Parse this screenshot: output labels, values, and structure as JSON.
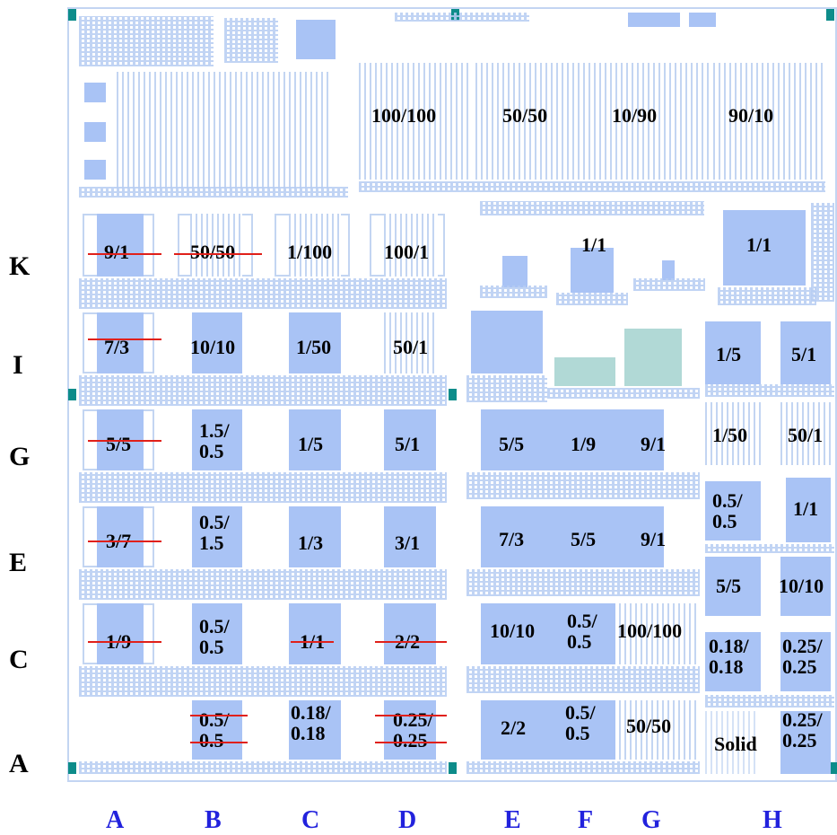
{
  "row_labels": [
    "K",
    "I",
    "G",
    "E",
    "C",
    "A"
  ],
  "column_labels": [
    "A",
    "B",
    "C",
    "D",
    "E",
    "F",
    "G",
    "H"
  ],
  "top_row": [
    "100/100",
    "50/50",
    "10/90",
    "90/10"
  ],
  "row_K": [
    "9/1",
    "50/50",
    "1/100",
    "100/1",
    "1/1",
    "1/1"
  ],
  "row_I": [
    "7/3",
    "10/10",
    "1/50",
    "50/1",
    "1/5",
    "5/1"
  ],
  "row_G": [
    "5/5",
    "1.5/\n0.5",
    "1/5",
    "5/1",
    "5/5",
    "1/9",
    "9/1",
    "1/50",
    "50/1"
  ],
  "row_E": [
    "3/7",
    "0.5/\n1.5",
    "1/3",
    "3/1",
    "7/3",
    "5/5",
    "9/1",
    "0.5/\n0.5",
    "1/1"
  ],
  "row_D": [
    "5/5",
    "10/10"
  ],
  "row_C": [
    "1/9",
    "0.5/\n0.5",
    "1/1",
    "2/2",
    "10/10",
    "0.5/\n0.5",
    "100/100",
    "0.18/\n0.18",
    "0.25/\n0.25"
  ],
  "row_A": [
    "0.5/\n0.5",
    "0.18/\n0.18",
    "0.25/\n0.25",
    "2/2",
    "0.5/\n0.5",
    "50/50",
    "Solid",
    "0.25/\n0.25"
  ],
  "colors": {
    "block": "#a9c3f5",
    "frame": "#c3d5f2",
    "teal": "#b1d9d6",
    "marker": "#0d8c8a",
    "strike": "#e0201a",
    "column_label": "#2222dd"
  }
}
